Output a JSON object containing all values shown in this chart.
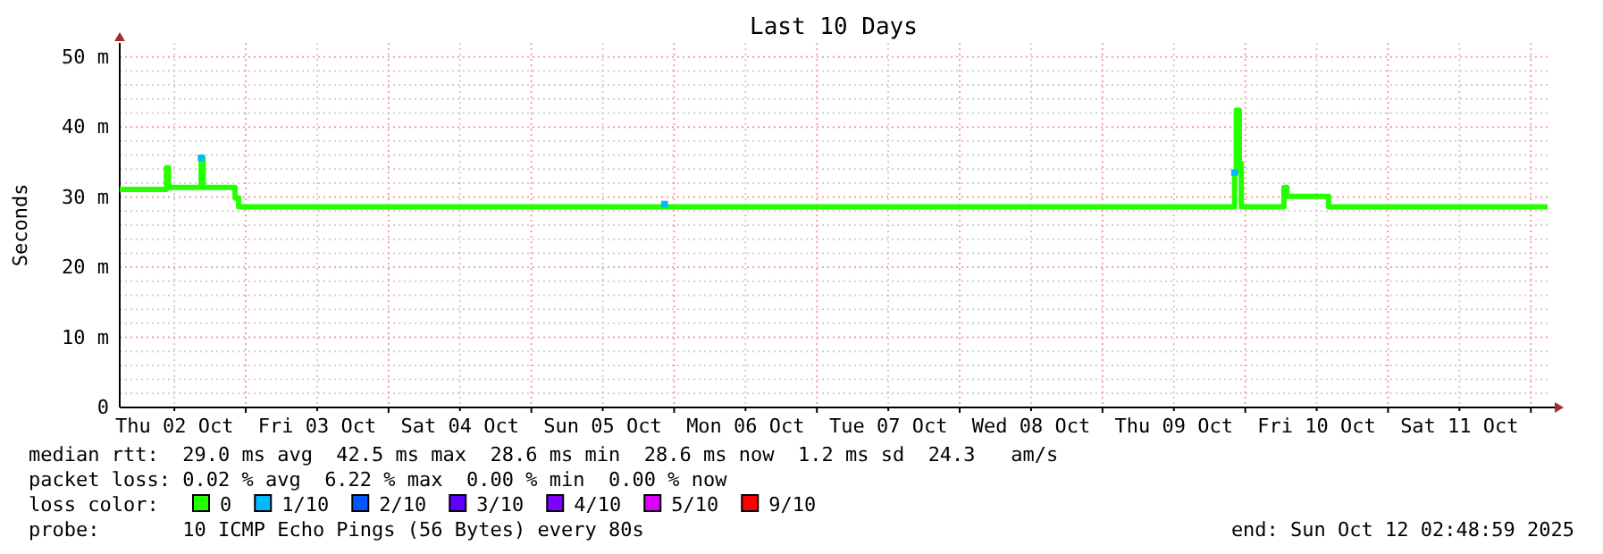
{
  "chart_data": {
    "type": "step",
    "title": "Last 10 Days",
    "ylabel": "Seconds",
    "xlim": [
      "2025-10-02T02:49",
      "2025-10-12T02:49"
    ],
    "xticks": [
      {
        "value": "2025-10-02T12:00",
        "label": "Thu 02 Oct"
      },
      {
        "value": "2025-10-03T00:00",
        "label": null
      },
      {
        "value": "2025-10-03T12:00",
        "label": "Fri 03 Oct"
      },
      {
        "value": "2025-10-04T00:00",
        "label": null
      },
      {
        "value": "2025-10-04T12:00",
        "label": "Sat 04 Oct"
      },
      {
        "value": "2025-10-05T00:00",
        "label": null
      },
      {
        "value": "2025-10-05T12:00",
        "label": "Sun 05 Oct"
      },
      {
        "value": "2025-10-06T00:00",
        "label": null
      },
      {
        "value": "2025-10-06T12:00",
        "label": "Mon 06 Oct"
      },
      {
        "value": "2025-10-07T00:00",
        "label": null
      },
      {
        "value": "2025-10-07T12:00",
        "label": "Tue 07 Oct"
      },
      {
        "value": "2025-10-08T00:00",
        "label": null
      },
      {
        "value": "2025-10-08T12:00",
        "label": "Wed 08 Oct"
      },
      {
        "value": "2025-10-09T00:00",
        "label": null
      },
      {
        "value": "2025-10-09T12:00",
        "label": "Thu 09 Oct"
      },
      {
        "value": "2025-10-10T00:00",
        "label": null
      },
      {
        "value": "2025-10-10T12:00",
        "label": "Fri 10 Oct"
      },
      {
        "value": "2025-10-11T00:00",
        "label": null
      },
      {
        "value": "2025-10-11T12:00",
        "label": "Sat 11 Oct"
      },
      {
        "value": "2025-10-12T00:00",
        "label": null
      }
    ],
    "ylim": [
      0,
      52
    ],
    "yticks": [
      0,
      {
        "value": 2,
        "label": null
      },
      {
        "value": 4,
        "label": null
      },
      {
        "value": 6,
        "label": null
      },
      {
        "value": 8,
        "label": null
      },
      {
        "value": 10,
        "label": "10 m"
      },
      {
        "value": 12,
        "label": null
      },
      {
        "value": 14,
        "label": null
      },
      {
        "value": 16,
        "label": null
      },
      {
        "value": 18,
        "label": null
      },
      {
        "value": 20,
        "label": "20 m"
      },
      {
        "value": 22,
        "label": null
      },
      {
        "value": 24,
        "label": null
      },
      {
        "value": 26,
        "label": null
      },
      {
        "value": 28,
        "label": null
      },
      {
        "value": 30,
        "label": "30 m"
      },
      {
        "value": 32,
        "label": null
      },
      {
        "value": 34,
        "label": null
      },
      {
        "value": 36,
        "label": null
      },
      {
        "value": 38,
        "label": null
      },
      {
        "value": 40,
        "label": "40 m"
      },
      {
        "value": 42,
        "label": null
      },
      {
        "value": 44,
        "label": null
      },
      {
        "value": 46,
        "label": null
      },
      {
        "value": 48,
        "label": null
      },
      {
        "value": 50,
        "label": "50 m"
      }
    ],
    "grid": true,
    "legend": "bottom",
    "legend_title": "loss color:",
    "series": [
      {
        "name": "0",
        "color": "#26ff00",
        "x": [
          "2025-10-02T02:49",
          "2025-10-02T10:30",
          "2025-10-02T10:40",
          "2025-10-02T11:00",
          "2025-10-02T16:12",
          "2025-10-02T16:30",
          "2025-10-02T16:50",
          "2025-10-02T21:54",
          "2025-10-02T22:12",
          "2025-10-02T22:48",
          "2025-10-09T22:00",
          "2025-10-09T22:12",
          "2025-10-09T22:30",
          "2025-10-09T23:00",
          "2025-10-09T23:20",
          "2025-10-10T06:20",
          "2025-10-10T06:30",
          "2025-10-10T07:00",
          "2025-10-10T13:40",
          "2025-10-10T14:00",
          "2025-10-12T02:49"
        ],
        "values": [
          31.1,
          31.1,
          34.2,
          31.4,
          31.4,
          35.6,
          31.4,
          31.4,
          29.9,
          28.6,
          28.6,
          33.5,
          42.4,
          34.8,
          28.6,
          28.6,
          31.4,
          30.1,
          30.1,
          28.6,
          28.6
        ]
      },
      {
        "name": "1/10",
        "color": "#00b8ff",
        "type": "scatter",
        "marker": "square",
        "x": [
          "2025-10-02T16:30",
          "2025-10-05T22:24",
          "2025-10-09T22:12"
        ],
        "values": [
          35.6,
          29.0,
          33.5
        ]
      },
      {
        "name": "2/10",
        "color": "#0059ff"
      },
      {
        "name": "3/10",
        "color": "#5e00ff"
      },
      {
        "name": "4/10",
        "color": "#7e00ff"
      },
      {
        "name": "5/10",
        "color": "#dd00ff"
      },
      {
        "name": "9/10",
        "color": "#ff0000"
      }
    ],
    "annotations": [
      "median rtt:  29.0 ms avg  42.5 ms max  28.6 ms min  28.6 ms now  1.2 ms sd  24.3   am/s",
      "packet loss: 0.02 % avg  6.22 % max  0.00 % min  0.00 % now",
      "probe:       10 ICMP Echo Pings (56 Bytes) every 80s",
      "end: Sun Oct 12 02:48:59 2025"
    ]
  }
}
